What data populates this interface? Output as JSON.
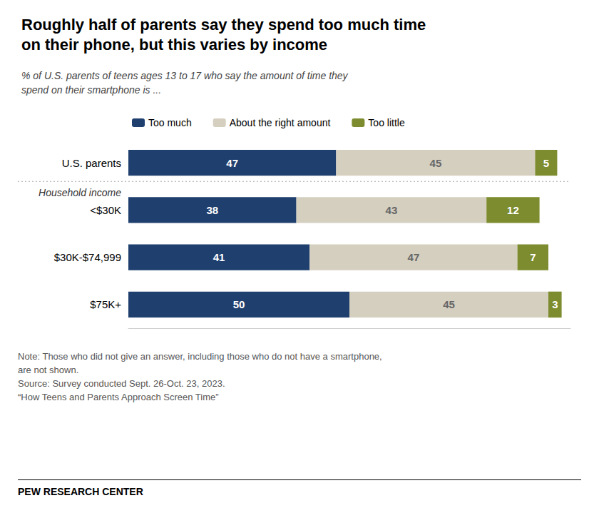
{
  "chart_data": {
    "type": "bar",
    "orientation": "horizontal",
    "stacked": true,
    "data_labels": true,
    "title": "Roughly half of parents say they spend too much time\non their phone, but this varies by income",
    "subtitle": "% of U.S. parents of teens ages 13 to 17 who say the amount of time they\nspend on their smartphone is ...",
    "categories": [
      "U.S. parents",
      "<$30K",
      "$30K-$74,999",
      "$75K+"
    ],
    "series": [
      {
        "name": "Too much",
        "color": "#1f3f6e",
        "values": [
          47,
          38,
          41,
          50
        ]
      },
      {
        "name": "About the right amount",
        "color": "#d5cfc0",
        "values": [
          45,
          43,
          47,
          45
        ]
      },
      {
        "name": "Too little",
        "color": "#7d8c2e",
        "values": [
          5,
          12,
          7,
          3
        ]
      }
    ],
    "xlim": [
      0,
      100
    ],
    "grid": false,
    "legend": "top",
    "tick_labels": "y",
    "annotations": [
      "Household income",
      "Note: Those who did not give an answer, including those who do not have a smartphone,\nare not shown.\nSource: Survey conducted Sept. 26-Oct. 23, 2023.\n“How Teens and Parents Approach Screen Time”",
      "PEW RESEARCH CENTER"
    ]
  }
}
